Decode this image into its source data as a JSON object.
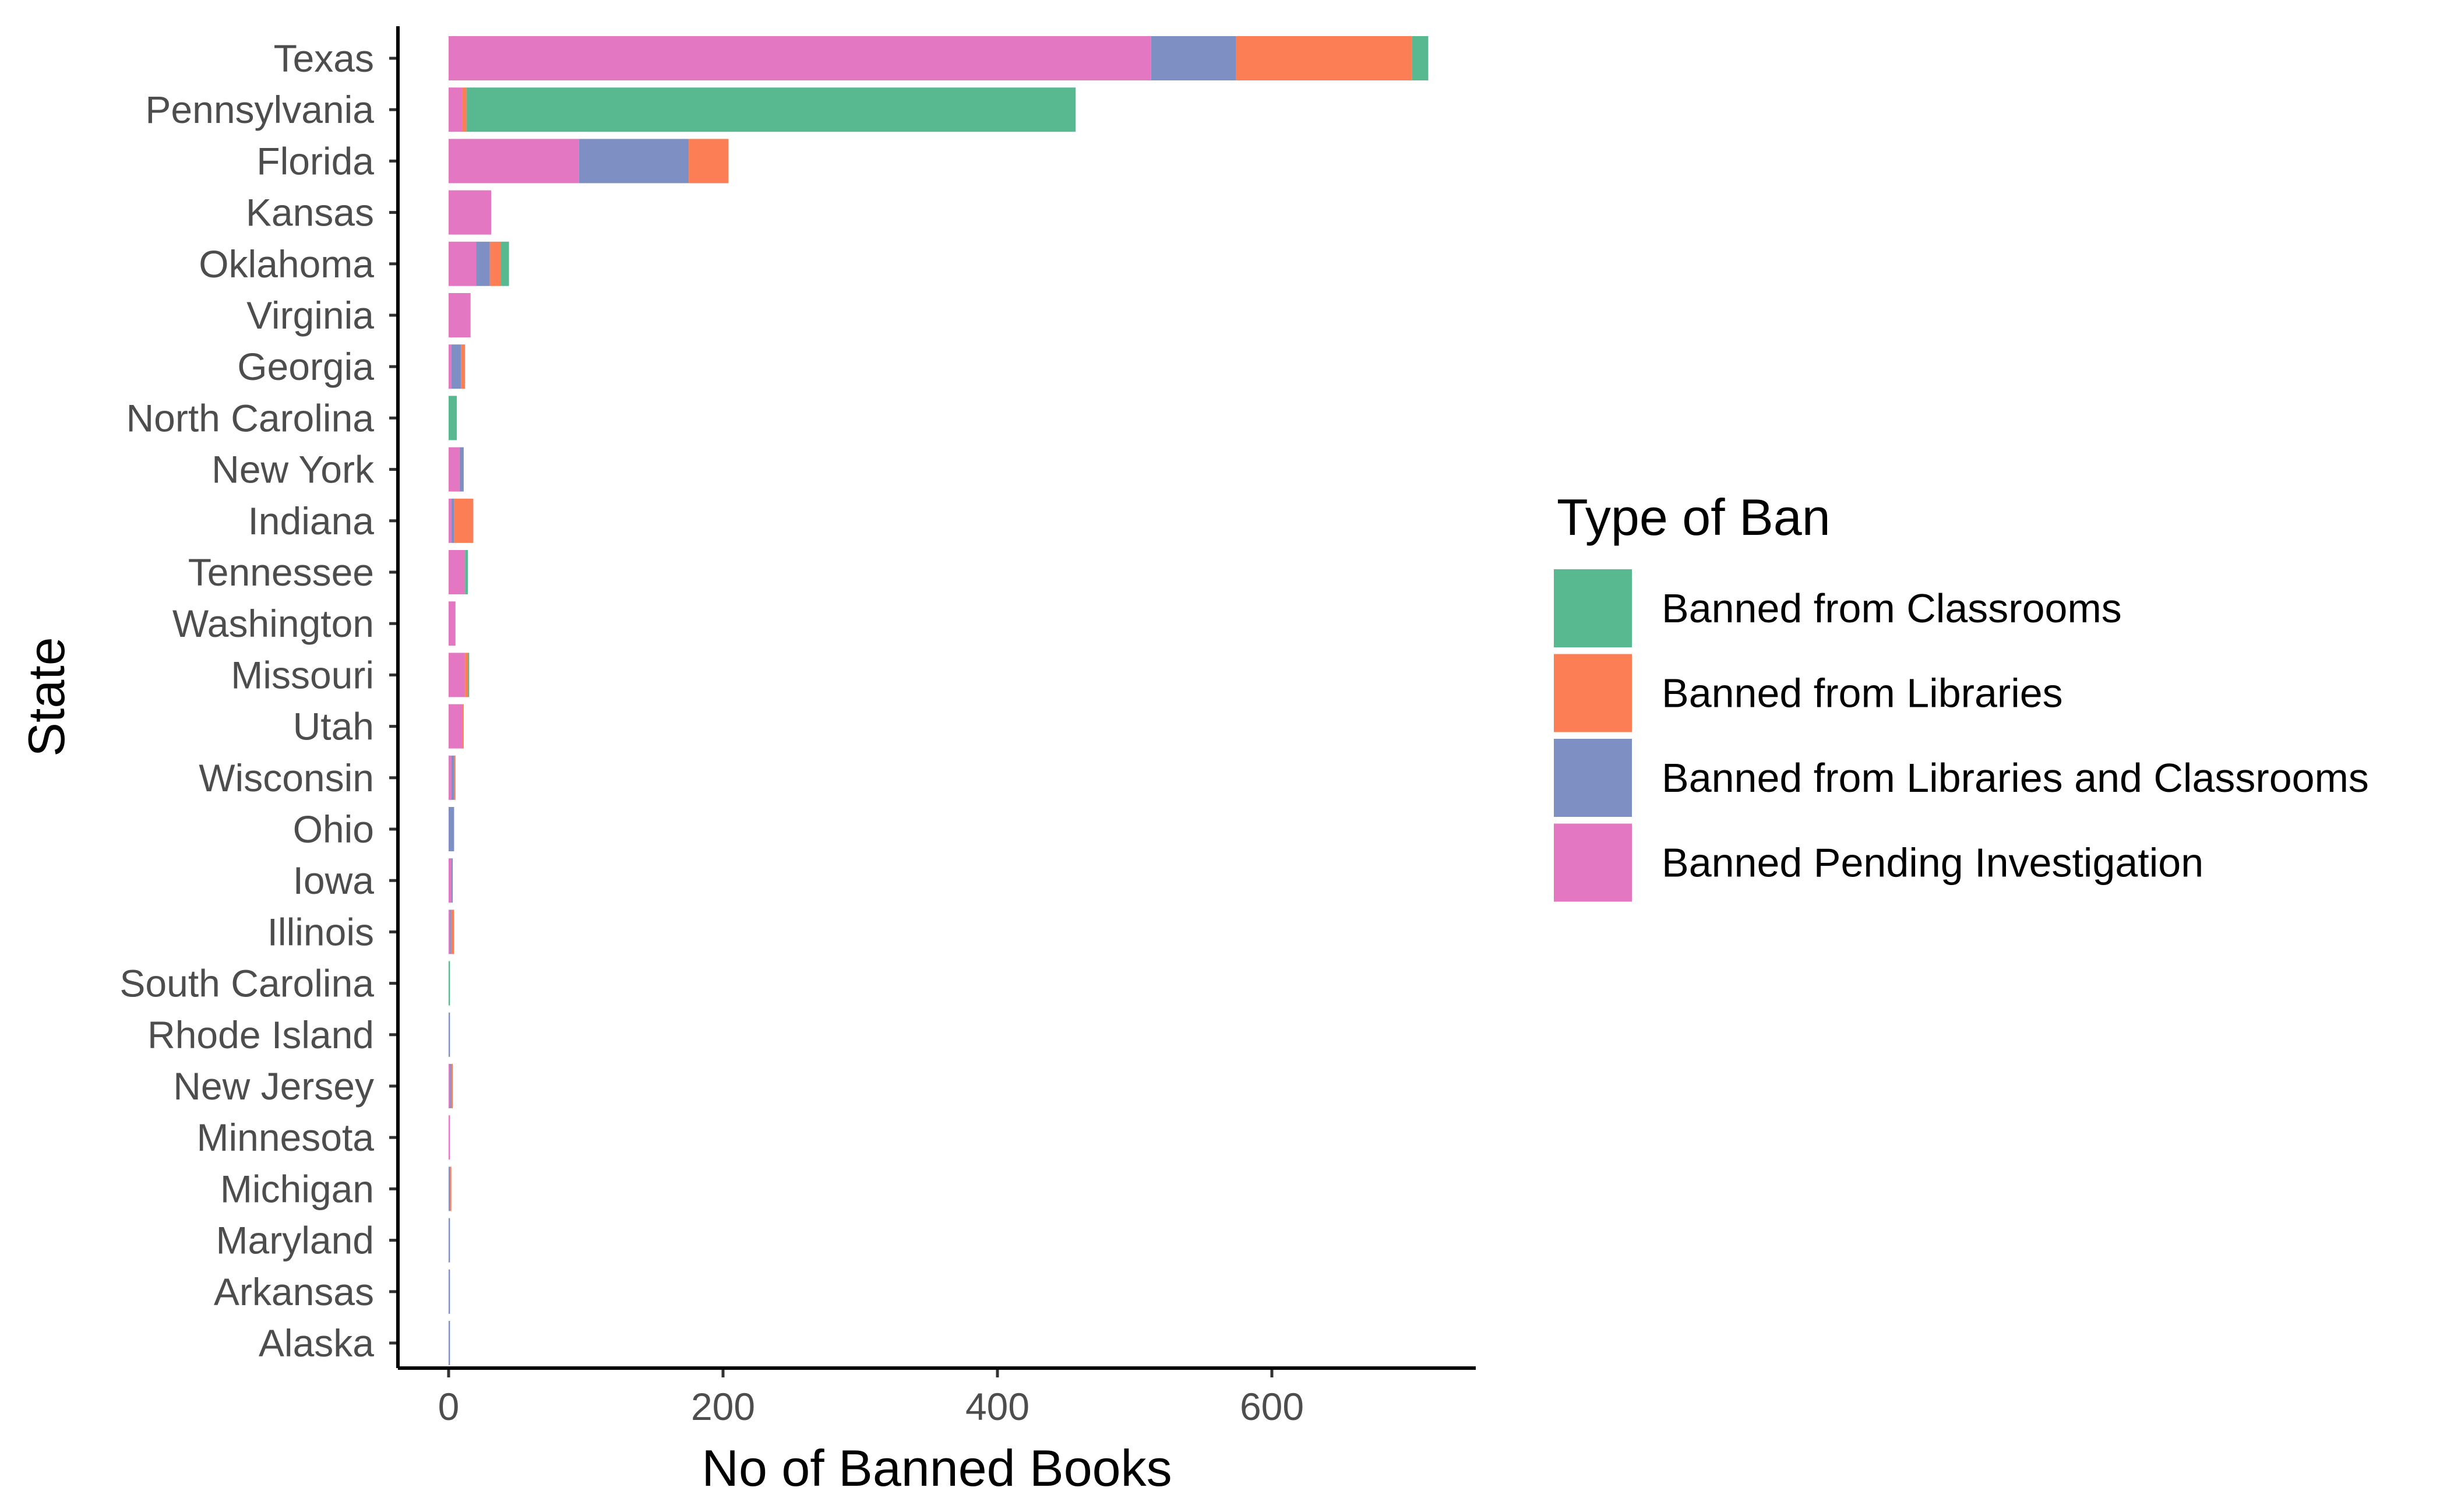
{
  "chart_data": {
    "type": "bar",
    "orientation": "horizontal",
    "stacked": true,
    "xlabel": "No of Banned Books",
    "ylabel": "State",
    "xlim": [
      -35,
      750
    ],
    "xticks": [
      0,
      200,
      400,
      600
    ],
    "grid": false,
    "legend_position": "right",
    "categories": [
      "Texas",
      "Pennsylvania",
      "Florida",
      "Kansas",
      "Oklahoma",
      "Virginia",
      "Georgia",
      "North Carolina",
      "New York",
      "Indiana",
      "Tennessee",
      "Washington",
      "Missouri",
      "Utah",
      "Wisconsin",
      "Ohio",
      "Iowa",
      "Illinois",
      "South Carolina",
      "Rhode Island",
      "New Jersey",
      "Minnesota",
      "Michigan",
      "Maryland",
      "Arkansas",
      "Alaska"
    ],
    "legend": {
      "title": "Type of Ban",
      "entries": [
        "Banned from Classrooms",
        "Banned from Libraries",
        "Banned from Libraries and Classrooms",
        "Banned Pending Investigation"
      ]
    },
    "stack_order": [
      "Banned Pending Investigation",
      "Banned from Libraries and Classrooms",
      "Banned from Libraries",
      "Banned from Classrooms"
    ],
    "series": [
      {
        "name": "Banned Pending Investigation",
        "color": "#E377C2",
        "values": [
          512,
          10,
          95,
          31,
          20,
          16,
          2,
          0,
          8,
          2,
          12,
          5,
          12,
          10,
          2,
          0,
          2,
          1,
          0,
          0,
          1,
          1,
          0,
          0,
          0,
          0
        ]
      },
      {
        "name": "Banned from Libraries and Classrooms",
        "color": "#7E8FC4",
        "values": [
          62,
          0,
          80,
          0,
          10,
          0,
          7,
          0,
          3,
          2,
          0,
          0,
          0,
          0,
          2,
          4,
          1,
          1,
          0,
          1,
          1,
          0,
          1,
          1,
          1,
          1
        ]
      },
      {
        "name": "Banned from Libraries",
        "color": "#FC7E55",
        "values": [
          128,
          3,
          29,
          0,
          8,
          0,
          3,
          0,
          0,
          14,
          0,
          0,
          2,
          1,
          1,
          0,
          0,
          2,
          0,
          0,
          1,
          0,
          1,
          0,
          0,
          0
        ]
      },
      {
        "name": "Banned from Classrooms",
        "color": "#58B991",
        "values": [
          12,
          444,
          0,
          0,
          6,
          0,
          0,
          6,
          0,
          0,
          2,
          0,
          1,
          0,
          0,
          0,
          0,
          0,
          1,
          0,
          0,
          0,
          0,
          0,
          0,
          0
        ]
      }
    ]
  }
}
